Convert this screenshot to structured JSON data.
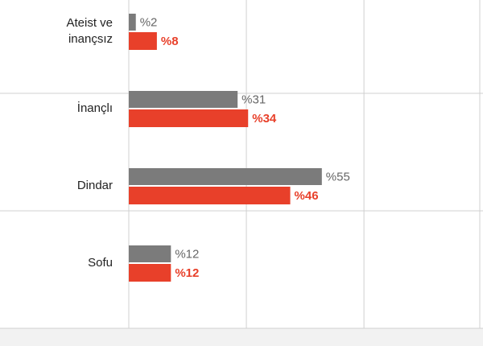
{
  "chart_data": {
    "type": "hbar",
    "categories": [
      [
        "Ateist ve",
        "inançsız"
      ],
      [
        "İnançlı"
      ],
      [
        "Dindar"
      ],
      [
        "Sofu"
      ]
    ],
    "series": [
      {
        "color": "#7b7b7b",
        "values": [
          2,
          31,
          55,
          12
        ],
        "value_labels": [
          "%2",
          "%31",
          "%55",
          "%12"
        ]
      },
      {
        "color": "#e8402a",
        "values": [
          8,
          34,
          46,
          12
        ],
        "value_labels": [
          "%8",
          "%34",
          "%46",
          "%12"
        ]
      }
    ],
    "xlim": [
      0,
      100
    ],
    "xticks": [
      0,
      33.5,
      67,
      100
    ],
    "grid": true
  }
}
